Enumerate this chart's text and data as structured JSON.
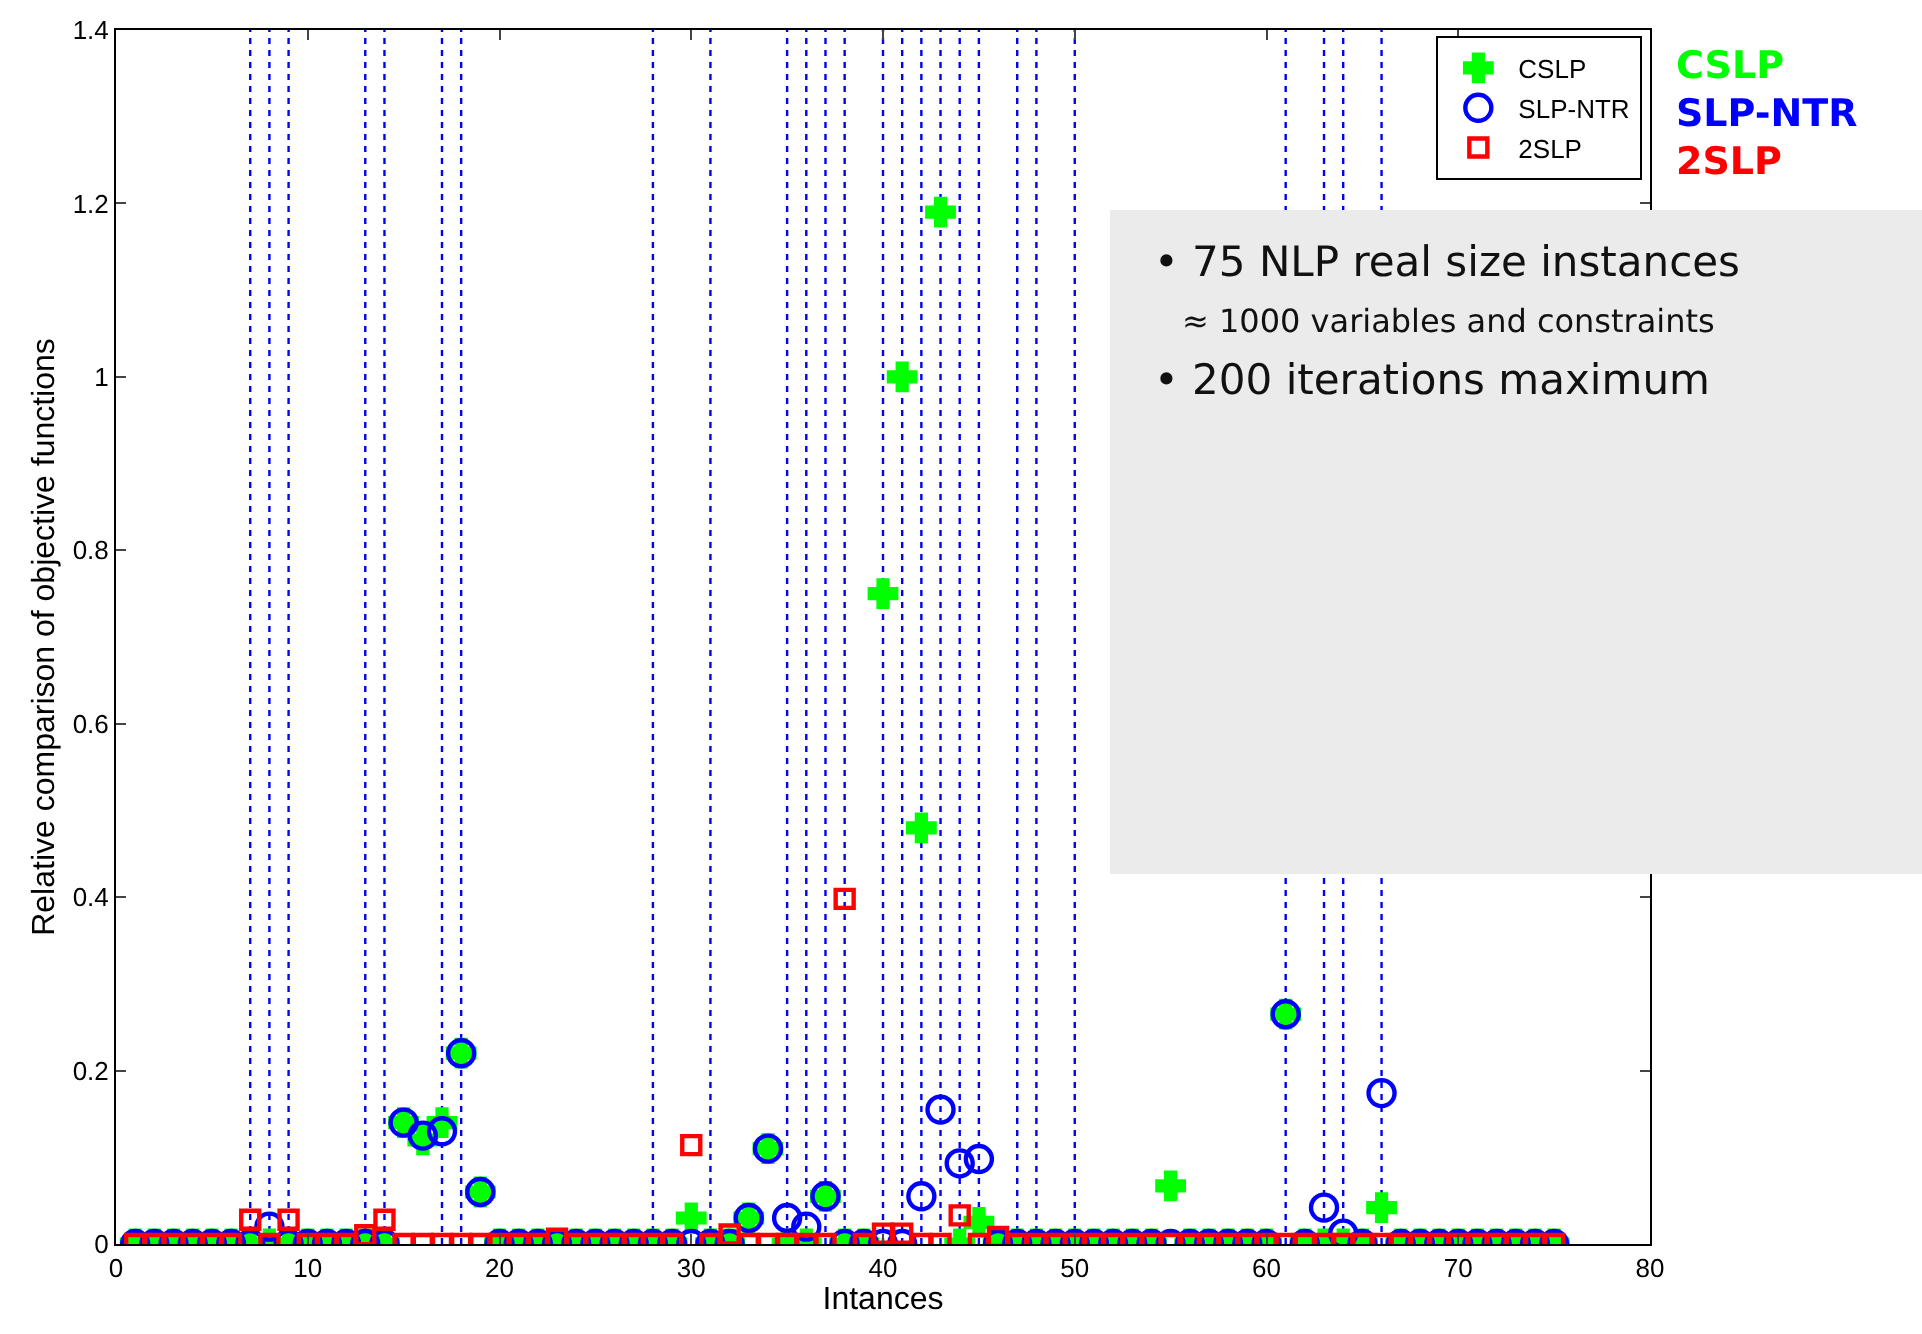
{
  "chart_data": {
    "type": "scatter",
    "xlabel": "Intances",
    "ylabel": "Relative comparison of objective functions",
    "x": [
      1,
      2,
      3,
      4,
      5,
      6,
      7,
      8,
      9,
      10,
      11,
      12,
      13,
      14,
      15,
      16,
      17,
      18,
      19,
      20,
      21,
      22,
      23,
      24,
      25,
      26,
      27,
      28,
      29,
      30,
      31,
      32,
      33,
      34,
      35,
      36,
      37,
      38,
      39,
      40,
      41,
      42,
      43,
      44,
      45,
      46,
      47,
      48,
      49,
      50,
      51,
      52,
      53,
      54,
      55,
      56,
      57,
      58,
      59,
      60,
      61,
      62,
      63,
      64,
      65,
      66,
      67,
      68,
      69,
      70,
      71,
      72,
      73,
      74,
      75
    ],
    "series": [
      {
        "name": "CSLP",
        "color": "#00ff00",
        "marker": "cross",
        "values": [
          0,
          0,
          0,
          0,
          0,
          0,
          0,
          0,
          0,
          0,
          0,
          0,
          0,
          0,
          0.14,
          0.12,
          0.14,
          0.22,
          0.06,
          0,
          0,
          0,
          0,
          0,
          0,
          0,
          0,
          0,
          0,
          0.03,
          0,
          0,
          0.03,
          0.11,
          0,
          0,
          0.055,
          0,
          0,
          0.75,
          1.0,
          0.48,
          1.19,
          0,
          0.025,
          0,
          0,
          0,
          0,
          0,
          0,
          0,
          0,
          0,
          0.067,
          0,
          0,
          0,
          0,
          0,
          0.265,
          0,
          0,
          0,
          0,
          0.042,
          0,
          0,
          0,
          0,
          0,
          0,
          0,
          0,
          0
        ]
      },
      {
        "name": "SLP-NTR",
        "color": "#0000ff",
        "marker": "circle",
        "values": [
          0,
          0,
          0,
          0,
          0,
          0,
          0,
          0.02,
          0,
          0,
          0,
          0,
          0,
          0,
          0.14,
          0.125,
          0.13,
          0.22,
          0.06,
          0,
          0,
          0,
          0,
          0,
          0,
          0,
          0,
          0,
          0,
          0,
          0,
          0,
          0.03,
          0.11,
          0.03,
          0.02,
          0.055,
          0,
          0,
          0,
          0,
          0.055,
          0.155,
          0.093,
          0.098,
          0,
          0,
          0,
          0,
          0,
          0,
          0,
          0,
          0,
          0,
          0,
          0,
          0,
          0,
          0,
          0.265,
          0,
          0.042,
          0.012,
          0,
          0.174,
          0,
          0,
          0,
          0,
          0,
          0,
          0,
          0,
          0
        ]
      },
      {
        "name": "2SLP",
        "color": "#ff0000",
        "marker": "square",
        "values": [
          0,
          0,
          0,
          0,
          0,
          0,
          0.028,
          0,
          0.028,
          0,
          0,
          0,
          0.01,
          0.028,
          0,
          0,
          0,
          0,
          0,
          0,
          0,
          0,
          0.006,
          0,
          0,
          0,
          0,
          0,
          0,
          0.114,
          0,
          0.011,
          0,
          0,
          0,
          0,
          0,
          0.398,
          0,
          0.012,
          0.012,
          0,
          0,
          0.033,
          0,
          0.008,
          0,
          0,
          0,
          0,
          0,
          0,
          0,
          0,
          0,
          0,
          0,
          0,
          0,
          0,
          0,
          0,
          0,
          0,
          0,
          0,
          0,
          0,
          0,
          0,
          0,
          0,
          0,
          0,
          0
        ]
      }
    ],
    "xlim": [
      0,
      80
    ],
    "xticks": [
      0,
      10,
      20,
      30,
      40,
      50,
      60,
      70,
      80
    ],
    "ylim": [
      0,
      1.4
    ],
    "yticks": [
      0,
      0.2,
      0.4,
      0.6,
      0.8,
      1,
      1.2,
      1.4
    ],
    "grid": false,
    "legend": "top right",
    "ref_lines": [
      {
        "axis": "x",
        "value": 7,
        "color": "#0000ff",
        "line_style": "dotted"
      },
      {
        "axis": "x",
        "value": 8,
        "color": "#0000ff",
        "line_style": "dotted"
      },
      {
        "axis": "x",
        "value": 9,
        "color": "#0000ff",
        "line_style": "dotted"
      },
      {
        "axis": "x",
        "value": 13,
        "color": "#0000ff",
        "line_style": "dotted"
      },
      {
        "axis": "x",
        "value": 14,
        "color": "#0000ff",
        "line_style": "dotted"
      },
      {
        "axis": "x",
        "value": 17,
        "color": "#0000ff",
        "line_style": "dotted"
      },
      {
        "axis": "x",
        "value": 18,
        "color": "#0000ff",
        "line_style": "dotted"
      },
      {
        "axis": "x",
        "value": 28,
        "color": "#0000ff",
        "line_style": "dotted"
      },
      {
        "axis": "x",
        "value": 31,
        "color": "#0000ff",
        "line_style": "dotted"
      },
      {
        "axis": "x",
        "value": 35,
        "color": "#0000ff",
        "line_style": "dotted"
      },
      {
        "axis": "x",
        "value": 36,
        "color": "#0000ff",
        "line_style": "dotted"
      },
      {
        "axis": "x",
        "value": 37,
        "color": "#0000ff",
        "line_style": "dotted"
      },
      {
        "axis": "x",
        "value": 38,
        "color": "#0000ff",
        "line_style": "dotted"
      },
      {
        "axis": "x",
        "value": 40,
        "color": "#0000ff",
        "line_style": "dotted"
      },
      {
        "axis": "x",
        "value": 41,
        "color": "#0000ff",
        "line_style": "dotted"
      },
      {
        "axis": "x",
        "value": 42,
        "color": "#0000ff",
        "line_style": "dotted"
      },
      {
        "axis": "x",
        "value": 43,
        "color": "#0000ff",
        "line_style": "dotted"
      },
      {
        "axis": "x",
        "value": 44,
        "color": "#0000ff",
        "line_style": "dotted"
      },
      {
        "axis": "x",
        "value": 45,
        "color": "#0000ff",
        "line_style": "dotted"
      },
      {
        "axis": "x",
        "value": 47,
        "color": "#0000ff",
        "line_style": "dotted"
      },
      {
        "axis": "x",
        "value": 48,
        "color": "#0000ff",
        "line_style": "dotted"
      },
      {
        "axis": "x",
        "value": 50,
        "color": "#0000ff",
        "line_style": "dotted"
      },
      {
        "axis": "x",
        "value": 61,
        "color": "#0000ff",
        "line_style": "dotted"
      },
      {
        "axis": "x",
        "value": 63,
        "color": "#0000ff",
        "line_style": "dotted"
      },
      {
        "axis": "x",
        "value": 64,
        "color": "#0000ff",
        "line_style": "dotted"
      },
      {
        "axis": "x",
        "value": 66,
        "color": "#0000ff",
        "line_style": "dotted"
      }
    ],
    "annotations": [
      "• 75 NLP real size instances",
      "≈ 1000 variables and constraints",
      "• 200 iterations maximum",
      "CSLP",
      "SLP-NTR",
      "2SLP"
    ]
  }
}
